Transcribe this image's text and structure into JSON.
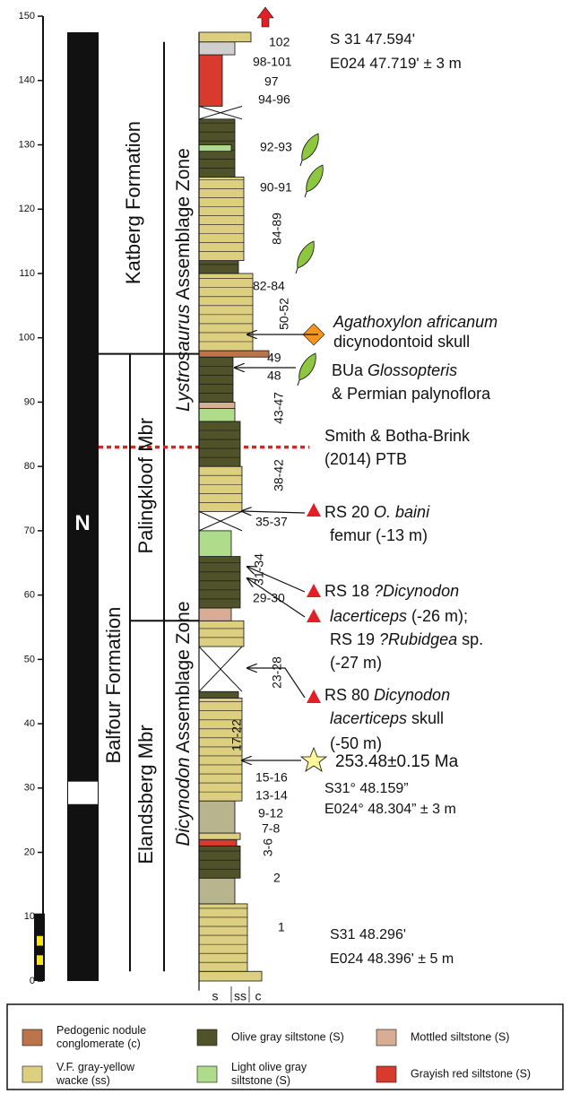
{
  "axis": {
    "ticks": [
      0,
      10,
      20,
      30,
      40,
      50,
      60,
      70,
      80,
      90,
      100,
      110,
      120,
      130,
      140,
      150
    ]
  },
  "magnetostratigraphy": {
    "label": "N"
  },
  "units": {
    "formations": [
      "Katberg Formation",
      "Balfour Formation"
    ],
    "members": [
      "Palingkloof Mbr",
      "Elandsberg Mbr"
    ],
    "zones": [
      [
        {
          "text": "Lystrosaurus",
          "italic": true
        },
        {
          "text": " Assemblage Zone"
        }
      ],
      [
        {
          "text": "Dicynodon",
          "italic": true
        },
        {
          "text": " Assemblage Zone"
        }
      ]
    ]
  },
  "bed_labels": [
    "102",
    "98-101",
    "97",
    "94-96",
    "92-93",
    "90-91",
    "84-89",
    "82-84",
    "50-52",
    "49",
    "48",
    "43-47",
    "38-42",
    "35-37",
    "31-34",
    "29-30",
    "23-28",
    "17-22",
    "15-16",
    "13-14",
    "9-12",
    "7-8",
    "3-6",
    "2",
    "1"
  ],
  "grain_labels": [
    "s",
    "ss",
    "c"
  ],
  "annotations": [
    [
      [
        {
          "text": "S 31 47.594'"
        }
      ],
      [
        {
          "text": "E024 47.719' ± 3 m"
        }
      ]
    ],
    [
      [
        {
          "text": "Agathoxylon africanum",
          "italic": true
        }
      ],
      [
        {
          "text": "dicynodontoid skull"
        }
      ]
    ],
    [
      [
        {
          "text": "BUa "
        },
        {
          "text": "Glossopteris",
          "italic": true
        }
      ],
      [
        {
          "text": "& Permian palynoflora"
        }
      ]
    ],
    [
      [
        {
          "text": "Smith & Botha-Brink"
        }
      ],
      [
        {
          "text": "(2014) PTB"
        }
      ]
    ],
    [
      [
        {
          "text": "RS 20 "
        },
        {
          "text": "O. baini",
          "italic": true
        }
      ],
      [
        {
          "text": "femur (-13 m)"
        }
      ]
    ],
    [
      [
        {
          "text": "RS 18 "
        },
        {
          "text": "?Dicynodon",
          "italic": true
        }
      ],
      [
        {
          "text": "lacerticeps",
          "italic": true
        },
        {
          "text": " (-26 m);"
        }
      ],
      [
        {
          "text": "RS 19 "
        },
        {
          "text": "?Rubidgea",
          "italic": true
        },
        {
          "text": " sp."
        }
      ],
      [
        {
          "text": "(-27 m)"
        }
      ]
    ],
    [
      [
        {
          "text": "RS 80 "
        },
        {
          "text": "Dicynodon",
          "italic": true
        }
      ],
      [
        {
          "text": "lacerticeps",
          "italic": true
        },
        {
          "text": " skull"
        }
      ],
      [
        {
          "text": "(-50 m)"
        }
      ]
    ],
    [
      [
        {
          "text": "253.48±0.15 Ma"
        }
      ]
    ],
    [
      [
        {
          "text": "S31° 48.159”"
        }
      ],
      [
        {
          "text": "E024° 48.304” ± 3 m"
        }
      ]
    ],
    [
      [
        {
          "text": "S31 48.296'"
        }
      ],
      [
        {
          "text": "E024 48.396' ± 5 m"
        }
      ]
    ]
  ],
  "legend": [
    {
      "color": "#bb7449",
      "lines": [
        "Pedogenic nodule",
        "conglomerate (c)"
      ]
    },
    {
      "color": "#50532a",
      "lines": [
        "Olive gray siltstone (S)"
      ]
    },
    {
      "color": "#d8ad93",
      "lines": [
        "Mottled siltstone (S)"
      ]
    },
    {
      "color": "#ddcf80",
      "lines": [
        "V.F. gray-yellow",
        "wacke (ss)"
      ]
    },
    {
      "color": "#aedc8a",
      "lines": [
        "Light olive gray",
        "siltstone (S)"
      ]
    },
    {
      "color": "#d93a2e",
      "lines": [
        "Grayish red siltstone (S)"
      ]
    }
  ]
}
